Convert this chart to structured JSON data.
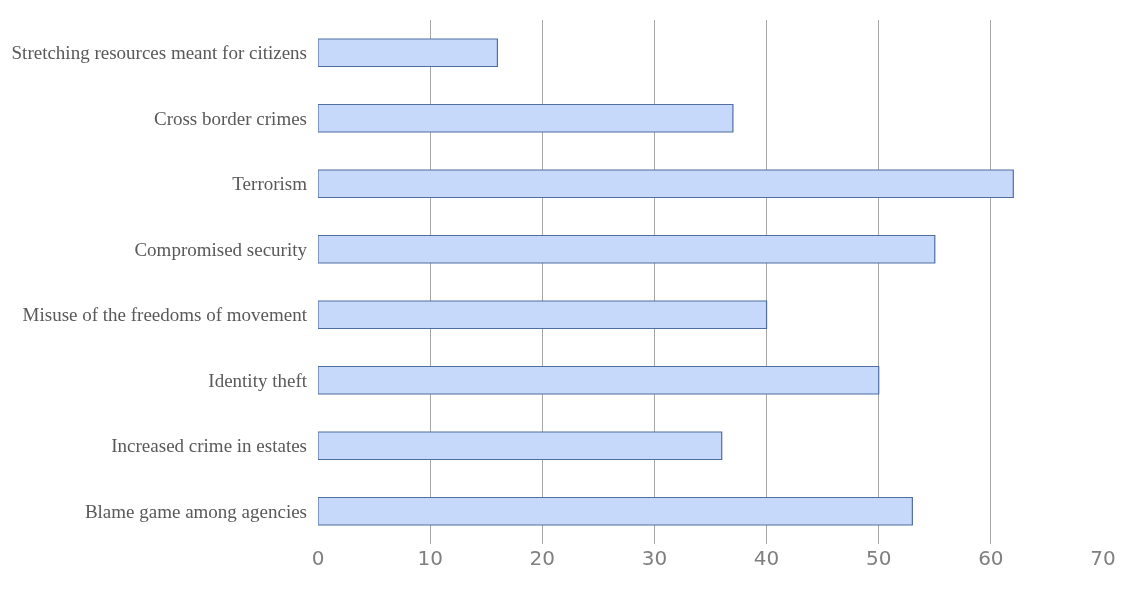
{
  "chart_data": {
    "type": "bar",
    "orientation": "horizontal",
    "categories": [
      "Stretching resources meant for citizens",
      "Cross border crimes",
      "Terrorism",
      "Compromised security",
      "Misuse of the freedoms of movement",
      "Identity theft",
      "Increased crime in estates",
      "Blame game among agencies"
    ],
    "values": [
      16,
      37,
      62,
      55,
      40,
      50,
      36,
      53
    ],
    "color": "#c6d9fa",
    "xlim": [
      0,
      70
    ],
    "xticks": [
      0,
      10,
      20,
      30,
      40,
      50,
      60,
      70
    ],
    "grid": "x",
    "legend": false
  }
}
